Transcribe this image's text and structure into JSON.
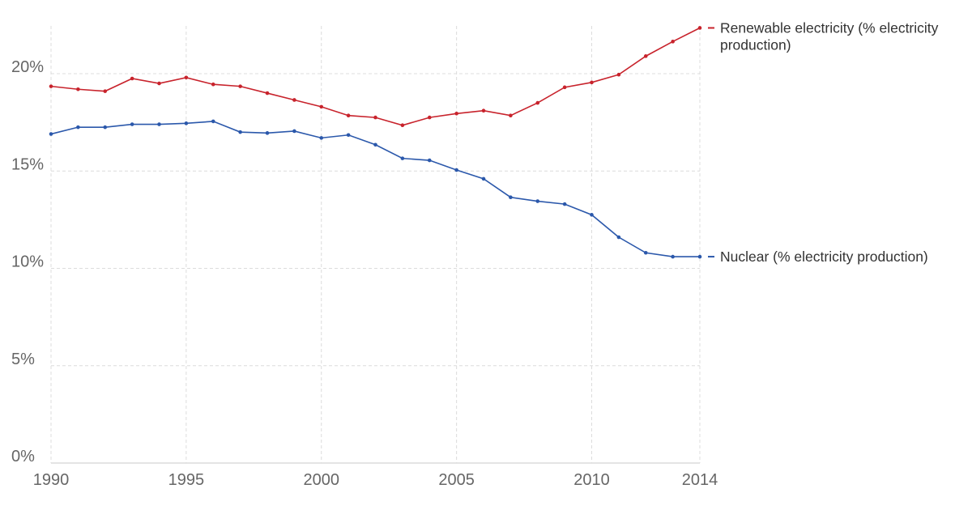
{
  "chart_data": {
    "type": "line",
    "x": [
      1990,
      1991,
      1992,
      1993,
      1994,
      1995,
      1996,
      1997,
      1998,
      1999,
      2000,
      2001,
      2002,
      2003,
      2004,
      2005,
      2006,
      2007,
      2008,
      2009,
      2010,
      2011,
      2012,
      2013,
      2014
    ],
    "xlim": [
      1990,
      2014
    ],
    "ylim": [
      0,
      22.5
    ],
    "x_ticks": [
      "1990",
      "1995",
      "2000",
      "2005",
      "2010",
      "2014"
    ],
    "y_ticks": [
      "0%",
      "5%",
      "10%",
      "15%",
      "20%"
    ],
    "grid": true,
    "legend_placement": "right, inline at line ends",
    "series": [
      {
        "name": "Renewable electricity (% electricity production)",
        "name_lines": [
          "Renewable electricity (% electricity",
          "production)"
        ],
        "color": "#c8232c",
        "values": [
          19.35,
          19.2,
          19.1,
          19.75,
          19.5,
          19.8,
          19.45,
          19.35,
          19.0,
          18.65,
          18.3,
          17.85,
          17.75,
          17.35,
          17.75,
          17.95,
          18.1,
          17.85,
          18.5,
          19.3,
          19.55,
          19.95,
          20.9,
          21.65,
          22.35
        ]
      },
      {
        "name": "Nuclear (% electricity production)",
        "name_lines": [
          "Nuclear (% electricity production)"
        ],
        "color": "#2b58ab",
        "values": [
          16.9,
          17.25,
          17.25,
          17.4,
          17.4,
          17.45,
          17.55,
          17.0,
          16.95,
          17.05,
          16.7,
          16.85,
          16.35,
          15.65,
          15.55,
          15.05,
          14.6,
          13.65,
          13.45,
          13.3,
          12.75,
          11.6,
          10.8,
          10.6,
          10.6
        ]
      }
    ]
  }
}
